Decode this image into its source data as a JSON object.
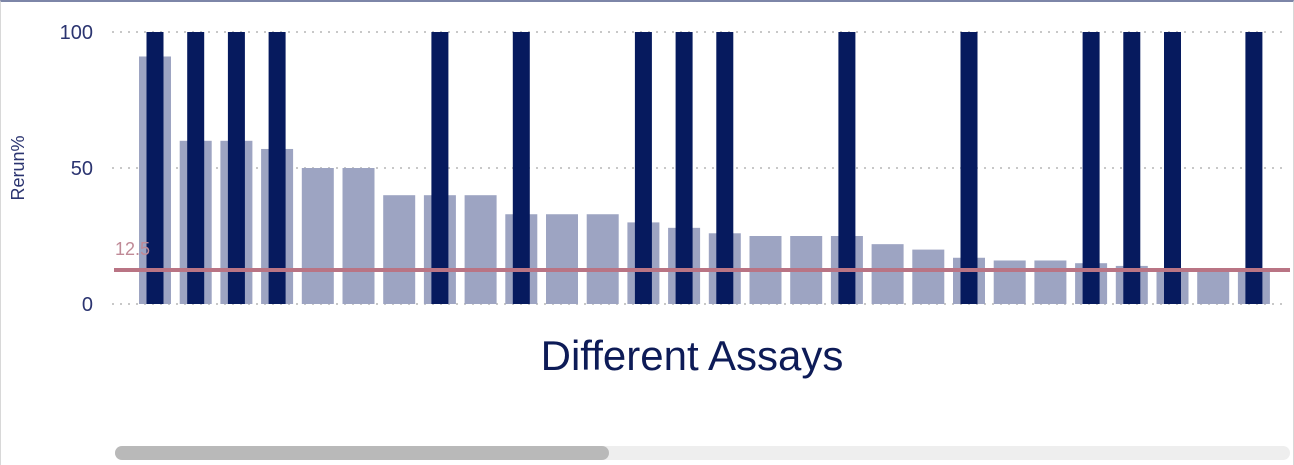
{
  "chart_data": {
    "type": "bar",
    "xlabel": "Different Assays",
    "ylabel": "Rerun%",
    "ylim": [
      0,
      100
    ],
    "yticks": [
      0,
      50,
      100
    ],
    "grid": true,
    "reference_line": {
      "value": 12.5,
      "label": "12.5"
    },
    "series": [
      {
        "values": [
          91,
          60,
          60,
          57,
          50,
          50,
          40,
          40,
          40,
          33,
          33,
          33,
          30,
          28,
          26,
          25,
          25,
          25,
          22,
          20,
          17,
          16,
          16,
          15,
          14,
          12,
          12,
          12
        ]
      },
      {
        "values": [
          100,
          100,
          100,
          100,
          0,
          0,
          0,
          100,
          0,
          100,
          0,
          0,
          100,
          100,
          100,
          0,
          0,
          100,
          0,
          0,
          100,
          0,
          0,
          100,
          100,
          100,
          0,
          100
        ]
      }
    ],
    "colors": {
      "series_0": "#9da4c2",
      "series_1": "#061a5e",
      "reference_line": "#b97484",
      "reference_label": "#c08a97",
      "axis_text": "#2b3470",
      "grid": "#c8c8c8"
    }
  },
  "scrollbar": {
    "position_fraction": 0.42
  }
}
